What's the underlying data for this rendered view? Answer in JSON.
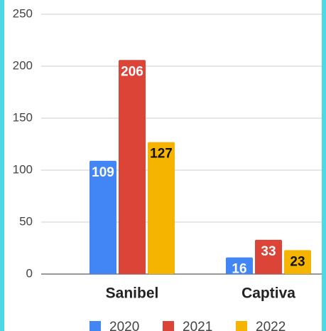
{
  "chart_data": {
    "type": "bar",
    "categories": [
      "Sanibel",
      "Captiva"
    ],
    "series": [
      {
        "name": "2020",
        "color": "#4285f4",
        "values": [
          109,
          16
        ]
      },
      {
        "name": "2021",
        "color": "#db4437",
        "values": [
          206,
          33
        ]
      },
      {
        "name": "2022",
        "color": "#f4b400",
        "values": [
          127,
          23
        ]
      }
    ],
    "ylim": [
      0,
      250
    ],
    "yticks": [
      0,
      50,
      100,
      150,
      200,
      250
    ],
    "grid": true
  }
}
